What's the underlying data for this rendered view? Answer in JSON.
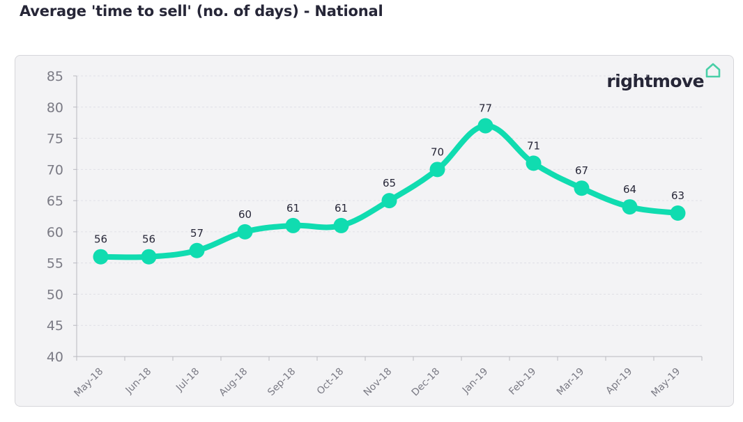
{
  "page": {
    "title": "Average 'time to sell' (no. of days) - National"
  },
  "logo": {
    "text": "rightmove",
    "icon": "house-outline-icon",
    "icon_color": "#49cfa7"
  },
  "colors": {
    "line": "#10dcb0",
    "panel_background": "#f3f3f5",
    "text": "#262637",
    "axis_text": "#7a7a84"
  },
  "chart_data": {
    "type": "line",
    "title": "Average 'time to sell' (no. of days) - National",
    "categories": [
      "May-18",
      "Jun-18",
      "Jul-18",
      "Aug-18",
      "Sep-18",
      "Oct-18",
      "Nov-18",
      "Dec-18",
      "Jan-19",
      "Feb-19",
      "Mar-19",
      "Apr-19",
      "May-19"
    ],
    "series": [
      {
        "values": [
          56,
          56,
          57,
          60,
          61,
          61,
          65,
          70,
          77,
          71,
          67,
          64,
          63
        ]
      }
    ],
    "ylim": [
      40,
      85
    ],
    "yticks": [
      40,
      45,
      50,
      55,
      60,
      65,
      70,
      75,
      80,
      85
    ],
    "data_labels": [
      "56",
      "56",
      "57",
      "60",
      "61",
      "61",
      "65",
      "70",
      "77",
      "71",
      "67",
      "64",
      "63"
    ],
    "grid": "horizontal dashed",
    "xlabel": "",
    "ylabel": "",
    "legend": "none"
  }
}
